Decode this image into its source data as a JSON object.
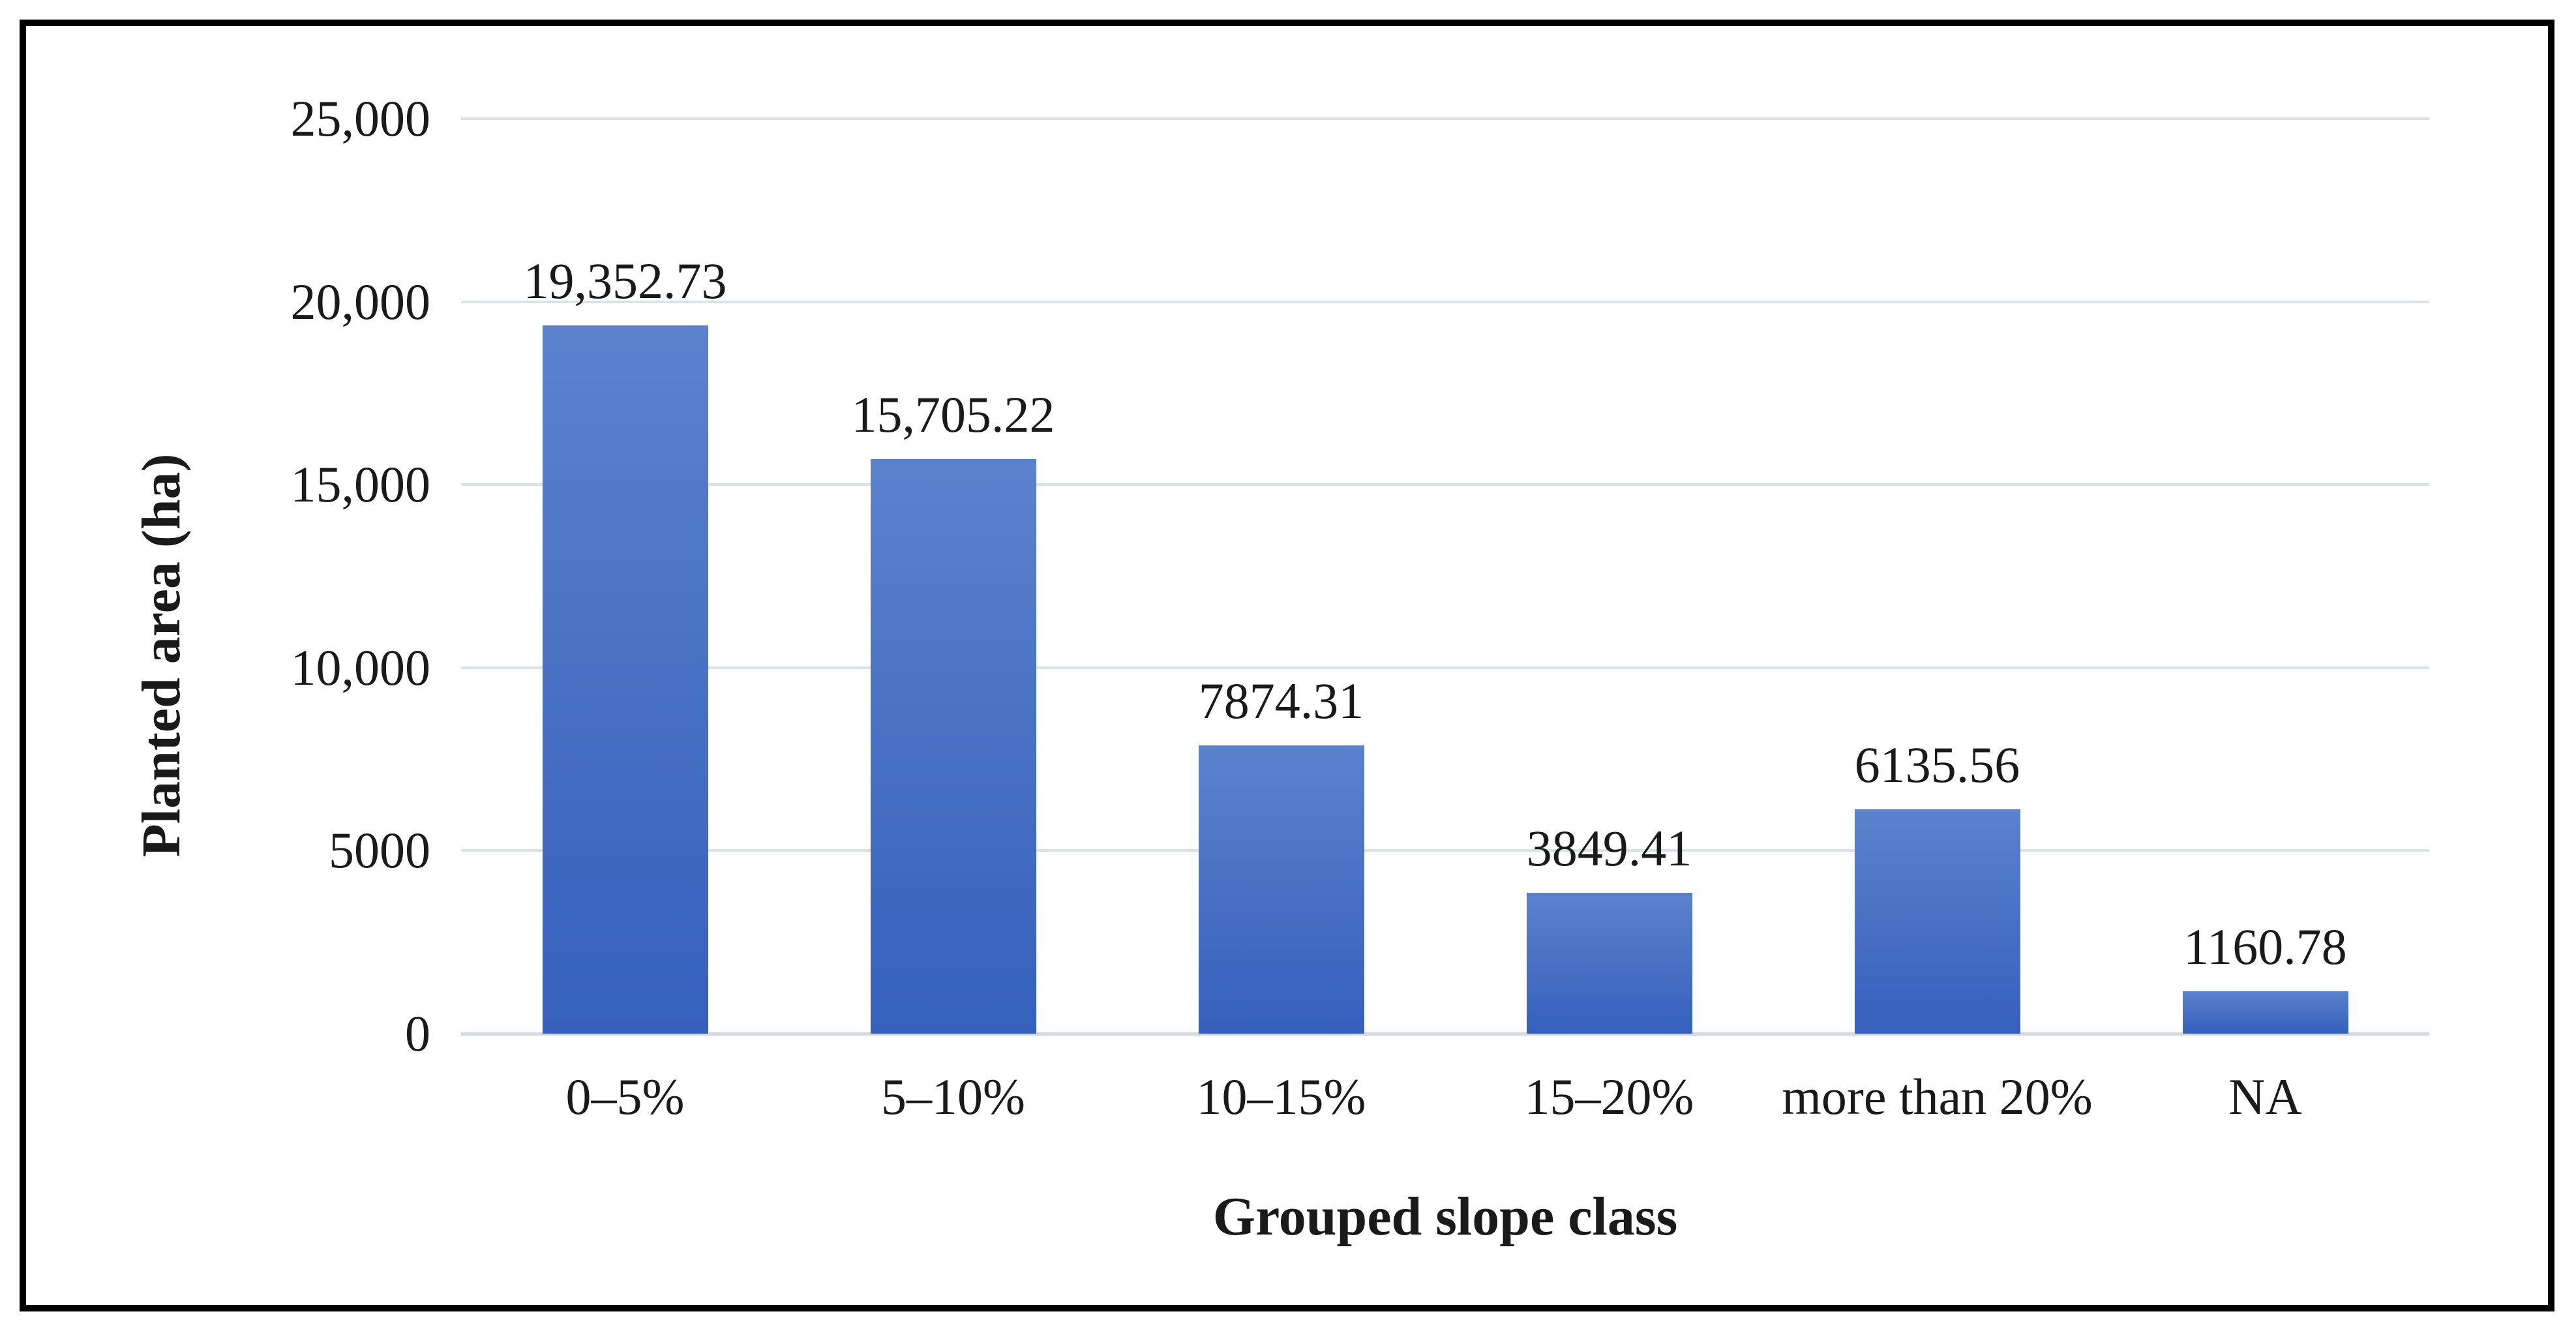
{
  "figure": {
    "type_note": "journal figure, framed bar chart"
  },
  "chart_data": {
    "type": "bar",
    "title": "",
    "xlabel": "Grouped slope class",
    "ylabel": "Planted area (ha)",
    "categories": [
      "0–5%",
      "5–10%",
      "10–15%",
      "15–20%",
      "more than 20%",
      "NA"
    ],
    "values": [
      19352.73,
      15705.22,
      7874.31,
      3849.41,
      6135.56,
      1160.78
    ],
    "value_labels": [
      "19,352.73",
      "15,705.22",
      "7874.31",
      "3849.41",
      "6135.56",
      "1160.78"
    ],
    "ylim": [
      0,
      25000
    ],
    "y_ticks": [
      {
        "value": 0,
        "label": "0"
      },
      {
        "value": 5000,
        "label": "5000"
      },
      {
        "value": 10000,
        "label": "10,000"
      },
      {
        "value": 15000,
        "label": "15,000"
      },
      {
        "value": 20000,
        "label": "20,000"
      },
      {
        "value": 25000,
        "label": "25,000"
      }
    ],
    "grid": true,
    "legend": "none",
    "colors": {
      "bar_top": "#5b82cd",
      "bar_bottom": "#3560bc",
      "gridline": "#dce0e9",
      "axis_line": "#d3d9e3",
      "text": "#1a1a1a",
      "frame": "#000000",
      "background": "#ffffff"
    }
  }
}
